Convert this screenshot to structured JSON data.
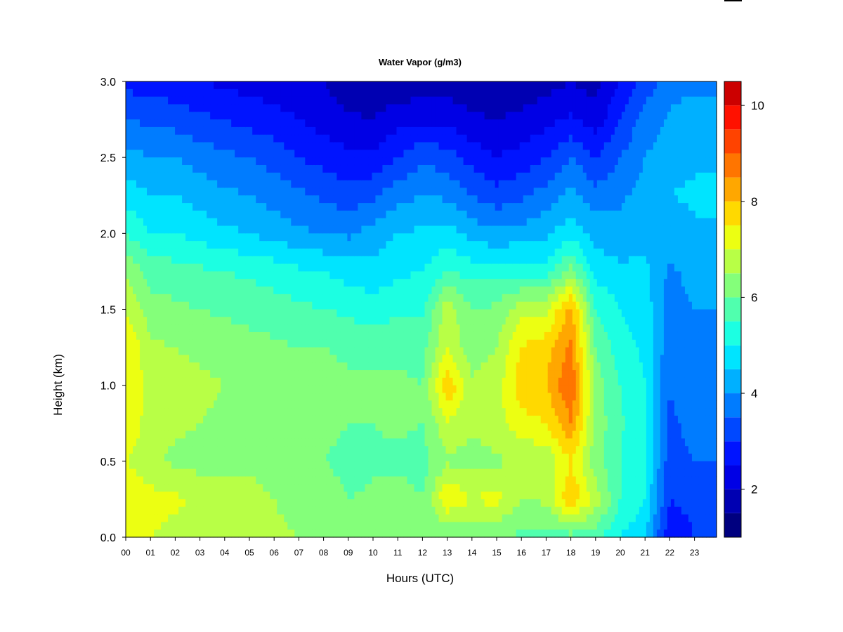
{
  "chart_data": {
    "type": "heatmap",
    "title": "Water Vapor (g/m3)",
    "xlabel": "Hours (UTC)",
    "ylabel": "Height (km)",
    "x_range": [
      0,
      24
    ],
    "ylim": [
      0,
      3.0
    ],
    "x_ticks": [
      "00",
      "01",
      "02",
      "03",
      "04",
      "05",
      "06",
      "07",
      "08",
      "09",
      "10",
      "11",
      "12",
      "13",
      "14",
      "15",
      "16",
      "17",
      "18",
      "19",
      "20",
      "21",
      "22",
      "23"
    ],
    "y_ticks": [
      "0.0",
      "0.5",
      "1.0",
      "1.5",
      "2.0",
      "2.5",
      "3.0"
    ],
    "colorbar": {
      "min": 1,
      "max": 10.5,
      "ticks": [
        "2",
        "4",
        "6",
        "8",
        "10"
      ],
      "levels": [
        1,
        1.5,
        2,
        2.5,
        3,
        3.5,
        4,
        4.5,
        5,
        5.5,
        6,
        6.5,
        7,
        7.5,
        8,
        8.5,
        9,
        9.5,
        10,
        10.5
      ],
      "colors": [
        "#00007F",
        "#0000B2",
        "#0000E5",
        "#0014FF",
        "#0048FF",
        "#007CFF",
        "#00B0FF",
        "#00E4FF",
        "#1CFFE2",
        "#50FFAE",
        "#84FF7A",
        "#B8FF46",
        "#ECFF12",
        "#FFD900",
        "#FFA700",
        "#FF7500",
        "#FF4300",
        "#FF1100",
        "#CC0000",
        "#7F0000"
      ]
    },
    "water_vapor_profile_by_hour": {
      "x": [
        0,
        1,
        2,
        3,
        4,
        5,
        6,
        7,
        8,
        9,
        10,
        11,
        12,
        13,
        14,
        15,
        16,
        17,
        18,
        19,
        20,
        21,
        22,
        23
      ],
      "y_heights_km": [
        0.0,
        0.25,
        0.5,
        0.75,
        1.0,
        1.25,
        1.5,
        1.75,
        2.0,
        2.25,
        2.5,
        2.75,
        3.0
      ],
      "values": [
        [
          7.0,
          7.5,
          7.0,
          7.5,
          7.5,
          7.5,
          7.0,
          6.5,
          5.5,
          4.8,
          4.2,
          3.5,
          2.8
        ],
        [
          7.0,
          7.2,
          6.6,
          6.7,
          6.8,
          6.6,
          6.2,
          5.8,
          5.0,
          4.5,
          4.0,
          3.4,
          2.8
        ],
        [
          6.8,
          7.1,
          6.4,
          6.6,
          6.7,
          6.5,
          6.1,
          5.7,
          5.0,
          4.5,
          4.0,
          3.3,
          2.6
        ],
        [
          6.8,
          6.9,
          6.3,
          6.5,
          6.6,
          6.4,
          6.0,
          5.6,
          4.8,
          4.3,
          3.8,
          3.1,
          2.5
        ],
        [
          6.7,
          6.8,
          6.2,
          6.4,
          6.5,
          6.3,
          5.9,
          5.5,
          4.6,
          4.1,
          3.6,
          3.0,
          2.4
        ],
        [
          6.6,
          6.9,
          6.2,
          6.3,
          6.4,
          6.2,
          5.8,
          5.4,
          4.5,
          4.0,
          3.5,
          2.8,
          2.3
        ],
        [
          6.6,
          6.5,
          6.1,
          6.2,
          6.3,
          6.1,
          5.7,
          5.3,
          4.3,
          3.8,
          3.3,
          2.7,
          2.2
        ],
        [
          6.5,
          6.3,
          6.0,
          6.2,
          6.2,
          6.0,
          5.6,
          5.1,
          4.1,
          3.6,
          3.0,
          2.5,
          2.1
        ],
        [
          6.5,
          6.4,
          6.0,
          6.2,
          6.2,
          6.0,
          5.5,
          5.0,
          4.0,
          3.4,
          2.8,
          2.3,
          2.0
        ],
        [
          6.3,
          6.0,
          5.8,
          6.0,
          6.1,
          5.9,
          5.4,
          4.8,
          3.9,
          3.2,
          2.6,
          2.1,
          1.6
        ],
        [
          6.3,
          6.1,
          5.9,
          6.0,
          6.1,
          5.8,
          5.2,
          4.7,
          4.2,
          3.4,
          2.6,
          2.0,
          1.6
        ],
        [
          6.4,
          6.2,
          5.9,
          6.1,
          6.1,
          5.9,
          5.4,
          4.9,
          4.5,
          3.8,
          3.0,
          2.3,
          1.6
        ],
        [
          6.2,
          6.0,
          5.8,
          6.0,
          6.0,
          5.8,
          5.4,
          5.0,
          4.6,
          4.0,
          3.4,
          2.4,
          1.7
        ],
        [
          6.0,
          7.5,
          6.4,
          6.9,
          8.0,
          6.9,
          6.8,
          5.5,
          4.7,
          3.9,
          3.2,
          2.4,
          1.7
        ],
        [
          6.0,
          7.0,
          6.3,
          6.6,
          6.6,
          6.2,
          6.0,
          5.3,
          4.3,
          3.5,
          2.8,
          2.1,
          1.6
        ],
        [
          6.0,
          7.2,
          6.4,
          6.8,
          6.8,
          6.5,
          6.1,
          5.3,
          4.1,
          3.2,
          2.5,
          2.0,
          1.6
        ],
        [
          5.9,
          6.5,
          6.6,
          7.3,
          7.8,
          7.5,
          6.8,
          5.3,
          4.2,
          3.4,
          2.7,
          2.1,
          1.7
        ],
        [
          5.8,
          6.6,
          6.6,
          7.5,
          8.0,
          7.8,
          6.9,
          5.2,
          4.4,
          3.7,
          3.0,
          2.3,
          1.8
        ],
        [
          5.8,
          8.0,
          7.5,
          8.5,
          9.0,
          8.6,
          8.2,
          6.2,
          4.8,
          4.2,
          3.5,
          2.6,
          2.0
        ],
        [
          5.7,
          6.8,
          6.2,
          6.3,
          6.3,
          6.0,
          5.5,
          4.8,
          4.3,
          3.7,
          3.0,
          2.2,
          1.8
        ],
        [
          5.0,
          5.5,
          5.5,
          5.6,
          5.5,
          5.2,
          5.0,
          4.6,
          4.2,
          3.9,
          3.5,
          3.0,
          2.5
        ],
        [
          4.6,
          5.0,
          5.0,
          5.0,
          5.0,
          4.9,
          4.8,
          4.6,
          4.4,
          4.2,
          4.0,
          3.7,
          3.2
        ],
        [
          2.5,
          3.0,
          3.2,
          3.4,
          3.5,
          3.6,
          3.7,
          3.9,
          4.2,
          4.5,
          4.3,
          4.1,
          3.8
        ],
        [
          3.0,
          3.2,
          3.5,
          3.7,
          3.8,
          3.9,
          4.0,
          4.2,
          4.4,
          4.6,
          4.4,
          4.2,
          3.9
        ]
      ]
    }
  }
}
